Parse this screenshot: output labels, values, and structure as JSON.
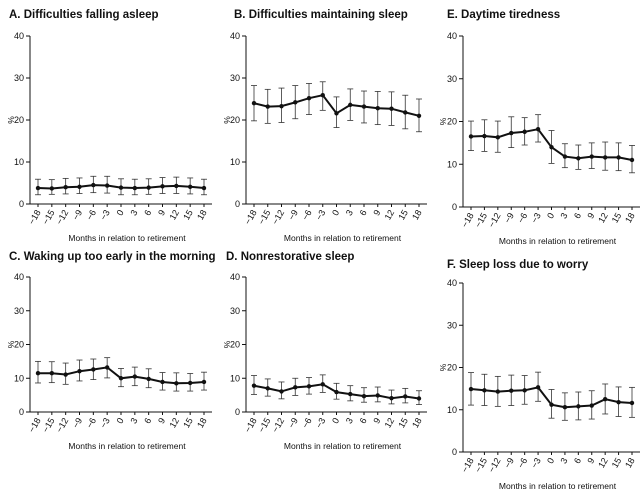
{
  "figure": {
    "line_color": "#111111",
    "errorbar_color": "#333333"
  },
  "chart_data": [
    {
      "type": "line",
      "title": "A.  Difficulties falling asleep",
      "xlabel": "Months in relation to retirement",
      "ylabel": "%",
      "ylim": [
        0,
        40
      ],
      "yticks": [
        "0",
        "10",
        "20",
        "30",
        "40"
      ],
      "x": [
        "-18",
        "-15",
        "-12",
        "-9",
        "-6",
        "-3",
        "0",
        "3",
        "6",
        "9",
        "12",
        "15",
        "18"
      ],
      "values": [
        3.8,
        3.7,
        4.0,
        4.1,
        4.5,
        4.4,
        3.9,
        3.8,
        3.9,
        4.2,
        4.3,
        4.1,
        3.8
      ],
      "err_low": [
        2.2,
        2.3,
        2.4,
        2.5,
        2.7,
        2.6,
        2.2,
        2.2,
        2.3,
        2.5,
        2.5,
        2.4,
        2.2
      ],
      "err_high": [
        5.9,
        5.8,
        6.1,
        6.2,
        6.6,
        6.6,
        6.0,
        5.9,
        6.0,
        6.3,
        6.4,
        6.2,
        5.9
      ]
    },
    {
      "type": "line",
      "title": "B. Difficulties maintaining sleep",
      "xlabel": "Months in relation to retirement",
      "ylabel": "%",
      "ylim": [
        0,
        40
      ],
      "yticks": [
        "0",
        "10",
        "20",
        "30",
        "40"
      ],
      "x": [
        "-18",
        "-15",
        "-12",
        "-9",
        "-6",
        "-3",
        "0",
        "3",
        "6",
        "9",
        "12",
        "15",
        "18"
      ],
      "values": [
        24.0,
        23.2,
        23.3,
        24.2,
        25.2,
        25.9,
        21.6,
        23.6,
        23.2,
        22.8,
        22.7,
        21.8,
        21.0
      ],
      "err_low": [
        19.8,
        19.2,
        19.4,
        20.3,
        21.3,
        22.3,
        18.2,
        19.9,
        19.3,
        18.9,
        18.7,
        17.9,
        17.2
      ],
      "err_high": [
        28.2,
        27.3,
        27.6,
        28.2,
        28.7,
        29.1,
        25.5,
        27.4,
        26.9,
        26.8,
        26.7,
        25.9,
        25.0
      ]
    },
    {
      "type": "line",
      "title": "E. Daytime tiredness",
      "xlabel": "Months in relation to retirement",
      "ylabel": "%",
      "ylim": [
        0,
        40
      ],
      "yticks": [
        "0",
        "10",
        "20",
        "30",
        "40"
      ],
      "x": [
        "-18",
        "-15",
        "-12",
        "-9",
        "-6",
        "-3",
        "0",
        "3",
        "6",
        "9",
        "12",
        "15",
        "18"
      ],
      "values": [
        16.5,
        16.6,
        16.3,
        17.3,
        17.6,
        18.2,
        14.0,
        11.8,
        11.4,
        11.8,
        11.6,
        11.6,
        11.0
      ],
      "err_low": [
        13.2,
        13.0,
        12.8,
        13.9,
        14.5,
        15.2,
        10.2,
        9.2,
        8.8,
        9.0,
        8.6,
        8.5,
        8.0
      ],
      "err_high": [
        20.1,
        20.4,
        20.1,
        21.1,
        20.9,
        21.6,
        17.9,
        14.8,
        14.5,
        15.0,
        15.2,
        15.0,
        14.4
      ]
    },
    {
      "type": "line",
      "title": "C. Waking up too early in the morning",
      "xlabel": "Months in relation to retirement",
      "ylabel": "%",
      "ylim": [
        0,
        40
      ],
      "yticks": [
        "0",
        "10",
        "20",
        "30",
        "40"
      ],
      "x": [
        "-18",
        "-15",
        "-12",
        "-9",
        "-6",
        "-3",
        "0",
        "3",
        "6",
        "9",
        "12",
        "15",
        "18"
      ],
      "values": [
        11.5,
        11.5,
        11.1,
        12.1,
        12.6,
        13.2,
        10.0,
        10.5,
        9.8,
        8.9,
        8.5,
        8.6,
        8.9
      ],
      "err_low": [
        8.6,
        8.7,
        8.2,
        9.2,
        9.6,
        10.1,
        7.5,
        7.8,
        7.2,
        6.5,
        6.2,
        6.2,
        6.5
      ],
      "err_high": [
        15.0,
        14.9,
        14.5,
        15.4,
        15.7,
        16.1,
        12.9,
        13.3,
        12.8,
        11.7,
        11.6,
        11.4,
        11.8
      ]
    },
    {
      "type": "line",
      "title": "D. Nonrestorative sleep",
      "xlabel": "Months in relation to retirement",
      "ylabel": "%",
      "ylim": [
        0,
        40
      ],
      "yticks": [
        "0",
        "10",
        "20",
        "30",
        "40"
      ],
      "x": [
        "-18",
        "-15",
        "-12",
        "-9",
        "-6",
        "-3",
        "0",
        "3",
        "6",
        "9",
        "12",
        "15",
        "18"
      ],
      "values": [
        7.8,
        7.0,
        6.1,
        7.3,
        7.6,
        8.2,
        5.9,
        5.3,
        4.7,
        4.9,
        4.1,
        4.6,
        4.0
      ],
      "err_low": [
        5.2,
        4.7,
        3.9,
        4.9,
        5.3,
        5.8,
        3.8,
        3.3,
        2.9,
        3.0,
        2.4,
        2.7,
        2.2
      ],
      "err_high": [
        10.8,
        9.8,
        8.9,
        10.0,
        10.2,
        11.0,
        8.5,
        7.8,
        7.2,
        7.4,
        6.5,
        7.0,
        6.3
      ]
    },
    {
      "type": "line",
      "title": "F. Sleep loss due to worry",
      "xlabel": "Months in relation to retirement",
      "ylabel": "%",
      "ylim": [
        0,
        40
      ],
      "yticks": [
        "0",
        "10",
        "20",
        "30",
        "40"
      ],
      "x": [
        "-18",
        "-15",
        "-12",
        "-9",
        "-6",
        "-3",
        "0",
        "3",
        "6",
        "9",
        "12",
        "15",
        "18"
      ],
      "values": [
        14.9,
        14.6,
        14.3,
        14.5,
        14.6,
        15.3,
        11.2,
        10.6,
        10.8,
        11.0,
        12.5,
        11.8,
        11.6
      ],
      "err_low": [
        11.1,
        11.0,
        10.8,
        11.0,
        11.3,
        12.0,
        8.0,
        7.5,
        7.6,
        7.8,
        9.0,
        8.4,
        8.2
      ],
      "err_high": [
        18.8,
        18.4,
        17.9,
        18.2,
        18.1,
        18.9,
        14.8,
        14.0,
        14.2,
        14.5,
        16.1,
        15.4,
        15.3
      ]
    }
  ]
}
